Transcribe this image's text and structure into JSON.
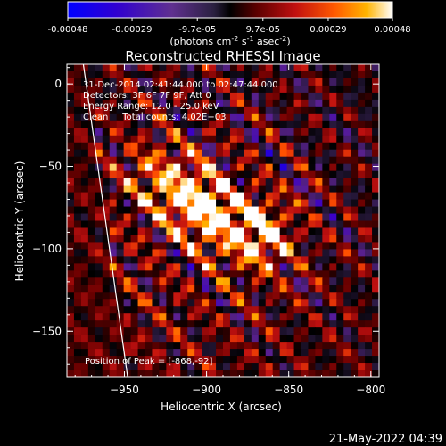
{
  "colorbar": {
    "ticks": [
      "-0.00048",
      "-0.00029",
      "-9.7e-05",
      "9.7e-05",
      "0.00029",
      "0.00048"
    ],
    "tick_values": [
      -0.00048,
      -0.00029,
      -9.7e-05,
      9.7e-05,
      0.00029,
      0.00048
    ],
    "range": [
      -0.00048,
      0.00048
    ],
    "units_main": "(photons cm",
    "units_e1": "-2",
    "units_s": " s",
    "units_e2": "-1",
    "units_asec": " asec",
    "units_e3": "-2",
    "units_close": ")"
  },
  "plot": {
    "title": "Reconstructed RHESSI Image",
    "info_lines": [
      "31-Dec-2014 02:41:44.000 to 02:47:44.000",
      "Detectors: 3F 6F 7F 9F, Att 0",
      "Energy Range: 12.0 - 25.0 keV",
      "Clean     Total counts: 4.02E+03"
    ],
    "peak_text": "Position of Peak = [-868,-92]",
    "footer_timestamp": "21-May-2022 04:39"
  },
  "colors": {
    "background": "#000000",
    "text": "#ffffff",
    "colormap": [
      "#0000ff",
      "#3a00c8",
      "#5a2090",
      "#2a1a40",
      "#000000",
      "#6a0000",
      "#c01010",
      "#ff5000",
      "#ffb000",
      "#ffffff"
    ]
  },
  "chart_data": {
    "type": "heatmap",
    "title": "Reconstructed RHESSI Image",
    "xlabel": "Heliocentric X (arcsec)",
    "ylabel": "Heliocentric Y (arcsec)",
    "xlim": [
      -985,
      -795
    ],
    "ylim": [
      -178,
      12
    ],
    "x_ticks": [
      -950,
      -900,
      -850,
      -800
    ],
    "y_ticks": [
      0,
      -50,
      -100,
      -150
    ],
    "x_tick_labels": [
      "−950",
      "−900",
      "−850",
      "−800"
    ],
    "y_tick_labels": [
      "0",
      "−50",
      "−100",
      "−150"
    ],
    "colorbar_range": [
      -0.00048,
      0.00048
    ],
    "peak_position": [
      -868,
      -92
    ],
    "sources": [
      {
        "x": -868,
        "y": -92,
        "amplitude": 1.0
      },
      {
        "x": -896,
        "y": -78,
        "amplitude": 0.9
      },
      {
        "x": -912,
        "y": -68,
        "amplitude": 0.7
      },
      {
        "x": -930,
        "y": -55,
        "amplitude": 0.45
      }
    ],
    "limb_line": [
      [
        -975,
        12
      ],
      [
        -948,
        -178
      ]
    ]
  }
}
